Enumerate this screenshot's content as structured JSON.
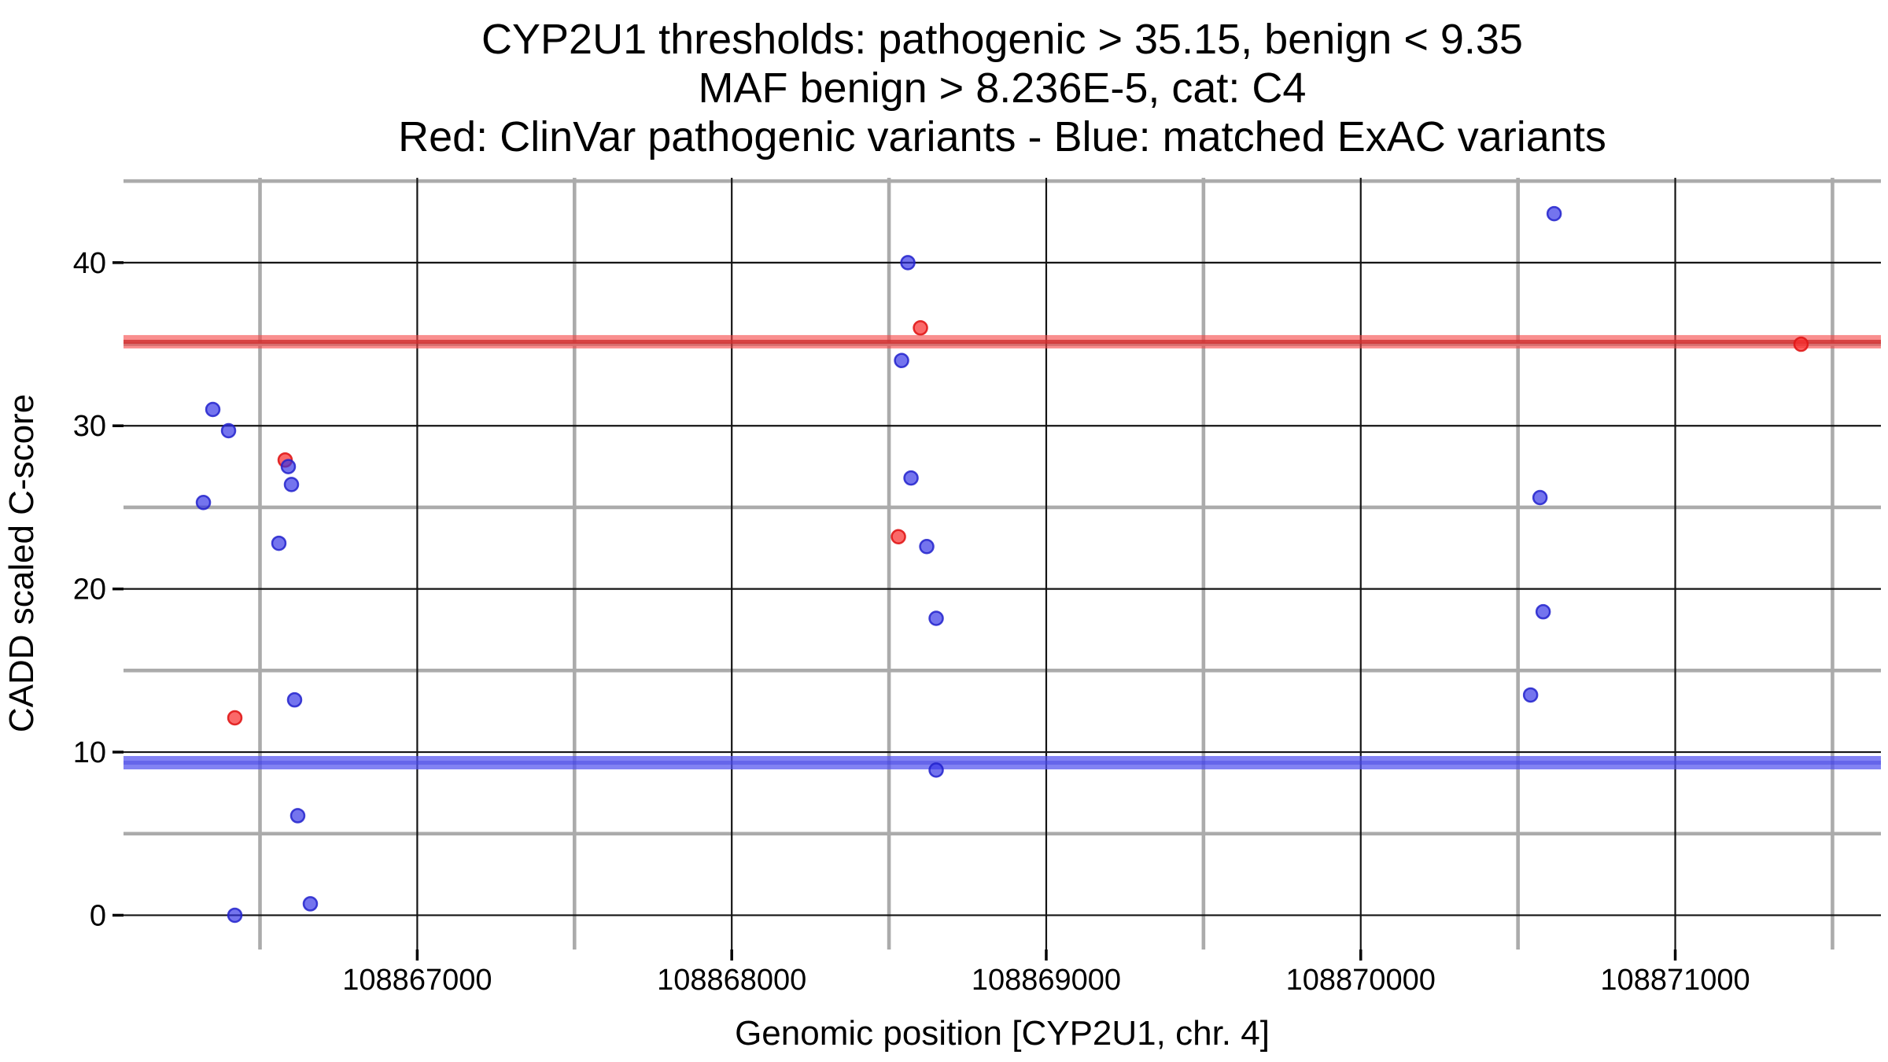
{
  "title": {
    "line1": "CYP2U1 thresholds: pathogenic > 35.15, benign < 9.35",
    "line2": "MAF benign > 8.236E-5, cat: C4",
    "line3": "Red: ClinVar pathogenic variants - Blue: matched ExAC variants"
  },
  "chart_data": {
    "type": "scatter",
    "xlabel": "Genomic position [CYP2U1, chr. 4]",
    "ylabel": "CADD scaled C-score",
    "xlim": [
      108866066,
      108871654
    ],
    "ylim": [
      -2.1,
      45.2
    ],
    "x_major_ticks": [
      108867000,
      108868000,
      108869000,
      108870000,
      108871000
    ],
    "x_major_tick_labels": [
      "108867000",
      "108868000",
      "108869000",
      "108870000",
      "108871000"
    ],
    "x_minor_ticks": [
      108866500,
      108867500,
      108868500,
      108869500,
      108870500,
      108871500
    ],
    "y_major_ticks": [
      0,
      10,
      20,
      30,
      40
    ],
    "y_major_tick_labels": [
      "0",
      "10",
      "20",
      "30",
      "40"
    ],
    "y_minor_ticks": [
      5,
      15,
      25,
      35,
      45
    ],
    "grid": "major-black-minor-gray",
    "legend_position": "none",
    "thresholds": [
      {
        "name": "pathogenic-threshold",
        "value": 35.15,
        "band_color": "#F54545",
        "band_opacity": 0.6,
        "core_color": "#D02F2F",
        "core_opacity": 0.8
      },
      {
        "name": "benign-threshold",
        "value": 9.35,
        "band_color": "#5252EE",
        "band_opacity": 0.72,
        "core_color": "#4242E0",
        "core_opacity": 0.45
      }
    ],
    "series": [
      {
        "name": "ClinVar pathogenic variants",
        "color": "#FA2A2A",
        "fill_opacity": 0.7,
        "stroke_color": "#E01818",
        "stroke_opacity": 0.9,
        "points": [
          [
            108866580,
            27.9
          ],
          [
            108866420,
            12.1
          ],
          [
            108868600,
            36.0
          ],
          [
            108868530,
            23.2
          ],
          [
            108871400,
            35.0
          ]
        ]
      },
      {
        "name": "matched ExAC variants",
        "color": "#3232E6",
        "fill_opacity": 0.68,
        "stroke_color": "#2222CC",
        "stroke_opacity": 0.85,
        "points": [
          [
            108866350,
            31.0
          ],
          [
            108866400,
            29.7
          ],
          [
            108866590,
            27.5
          ],
          [
            108866600,
            26.4
          ],
          [
            108866320,
            25.3
          ],
          [
            108866560,
            22.8
          ],
          [
            108866610,
            13.2
          ],
          [
            108866620,
            6.1
          ],
          [
            108866420,
            0.0
          ],
          [
            108866660,
            0.7
          ],
          [
            108868560,
            40.0
          ],
          [
            108868540,
            34.0
          ],
          [
            108868570,
            26.8
          ],
          [
            108868620,
            22.6
          ],
          [
            108868650,
            18.2
          ],
          [
            108868650,
            8.9
          ],
          [
            108870615,
            43.0
          ],
          [
            108870570,
            25.6
          ],
          [
            108870580,
            18.6
          ],
          [
            108870540,
            13.5
          ]
        ]
      }
    ],
    "style": {
      "background": "#FFFFFF",
      "major_grid_color": "#141414",
      "major_grid_width": 2.2,
      "minor_grid_color": "#ABABAB",
      "minor_grid_width": 4.6,
      "tick_color": "#000000",
      "tick_length": 14,
      "band_height": 17,
      "band_core_height": 5,
      "point_radius": 8.5,
      "point_stroke_width": 2.5
    }
  }
}
